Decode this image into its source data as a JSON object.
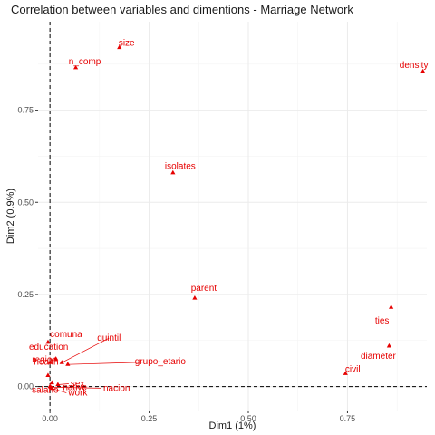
{
  "chart_data": {
    "type": "scatter",
    "title": "Correlation between variables and dimentions - Marriage Network",
    "xlabel": "Dim1 (1%)",
    "ylabel": "Dim2 (0.9%)",
    "xlim": [
      -0.03,
      0.95
    ],
    "ylim": [
      -0.065,
      0.99
    ],
    "x_ticks": [
      0.0,
      0.25,
      0.5,
      0.75
    ],
    "x_tick_labels": [
      "0.00",
      "0.25",
      "0.50",
      "0.75"
    ],
    "y_ticks": [
      0.0,
      0.25,
      0.5,
      0.75
    ],
    "y_tick_labels": [
      "0.00",
      "0.25",
      "0.50",
      "0.75"
    ],
    "grid": true,
    "reference_lines": {
      "x": 0,
      "y": 0,
      "style": "dashed"
    },
    "point_color": "#e60000",
    "points": [
      {
        "label": "size",
        "x": 0.175,
        "y": 0.92
      },
      {
        "label": "n_comp",
        "x": 0.065,
        "y": 0.865
      },
      {
        "label": "density",
        "x": 0.94,
        "y": 0.855
      },
      {
        "label": "isolates",
        "x": 0.31,
        "y": 0.58
      },
      {
        "label": "parent",
        "x": 0.365,
        "y": 0.24
      },
      {
        "label": "ties",
        "x": 0.86,
        "y": 0.215
      },
      {
        "label": "diameter",
        "x": 0.855,
        "y": 0.11
      },
      {
        "label": "civil",
        "x": 0.745,
        "y": 0.035
      },
      {
        "label": "comuna",
        "x": -0.005,
        "y": 0.12
      },
      {
        "label": "education",
        "x": 0.015,
        "y": 0.075
      },
      {
        "label": "quintil",
        "x": 0.03,
        "y": 0.065
      },
      {
        "label": "region",
        "x": 0.0,
        "y": 0.065
      },
      {
        "label": "grupo_etario",
        "x": 0.045,
        "y": 0.06
      },
      {
        "label": "health",
        "x": -0.005,
        "y": 0.03
      },
      {
        "label": "native",
        "x": 0.005,
        "y": 0.01
      },
      {
        "label": "sex",
        "x": 0.02,
        "y": 0.005
      },
      {
        "label": "salario",
        "x": 0.0,
        "y": 0.0
      },
      {
        "label": "work",
        "x": 0.005,
        "y": -0.005
      },
      {
        "label": "nacion",
        "x": 0.002,
        "y": -0.002
      }
    ]
  }
}
